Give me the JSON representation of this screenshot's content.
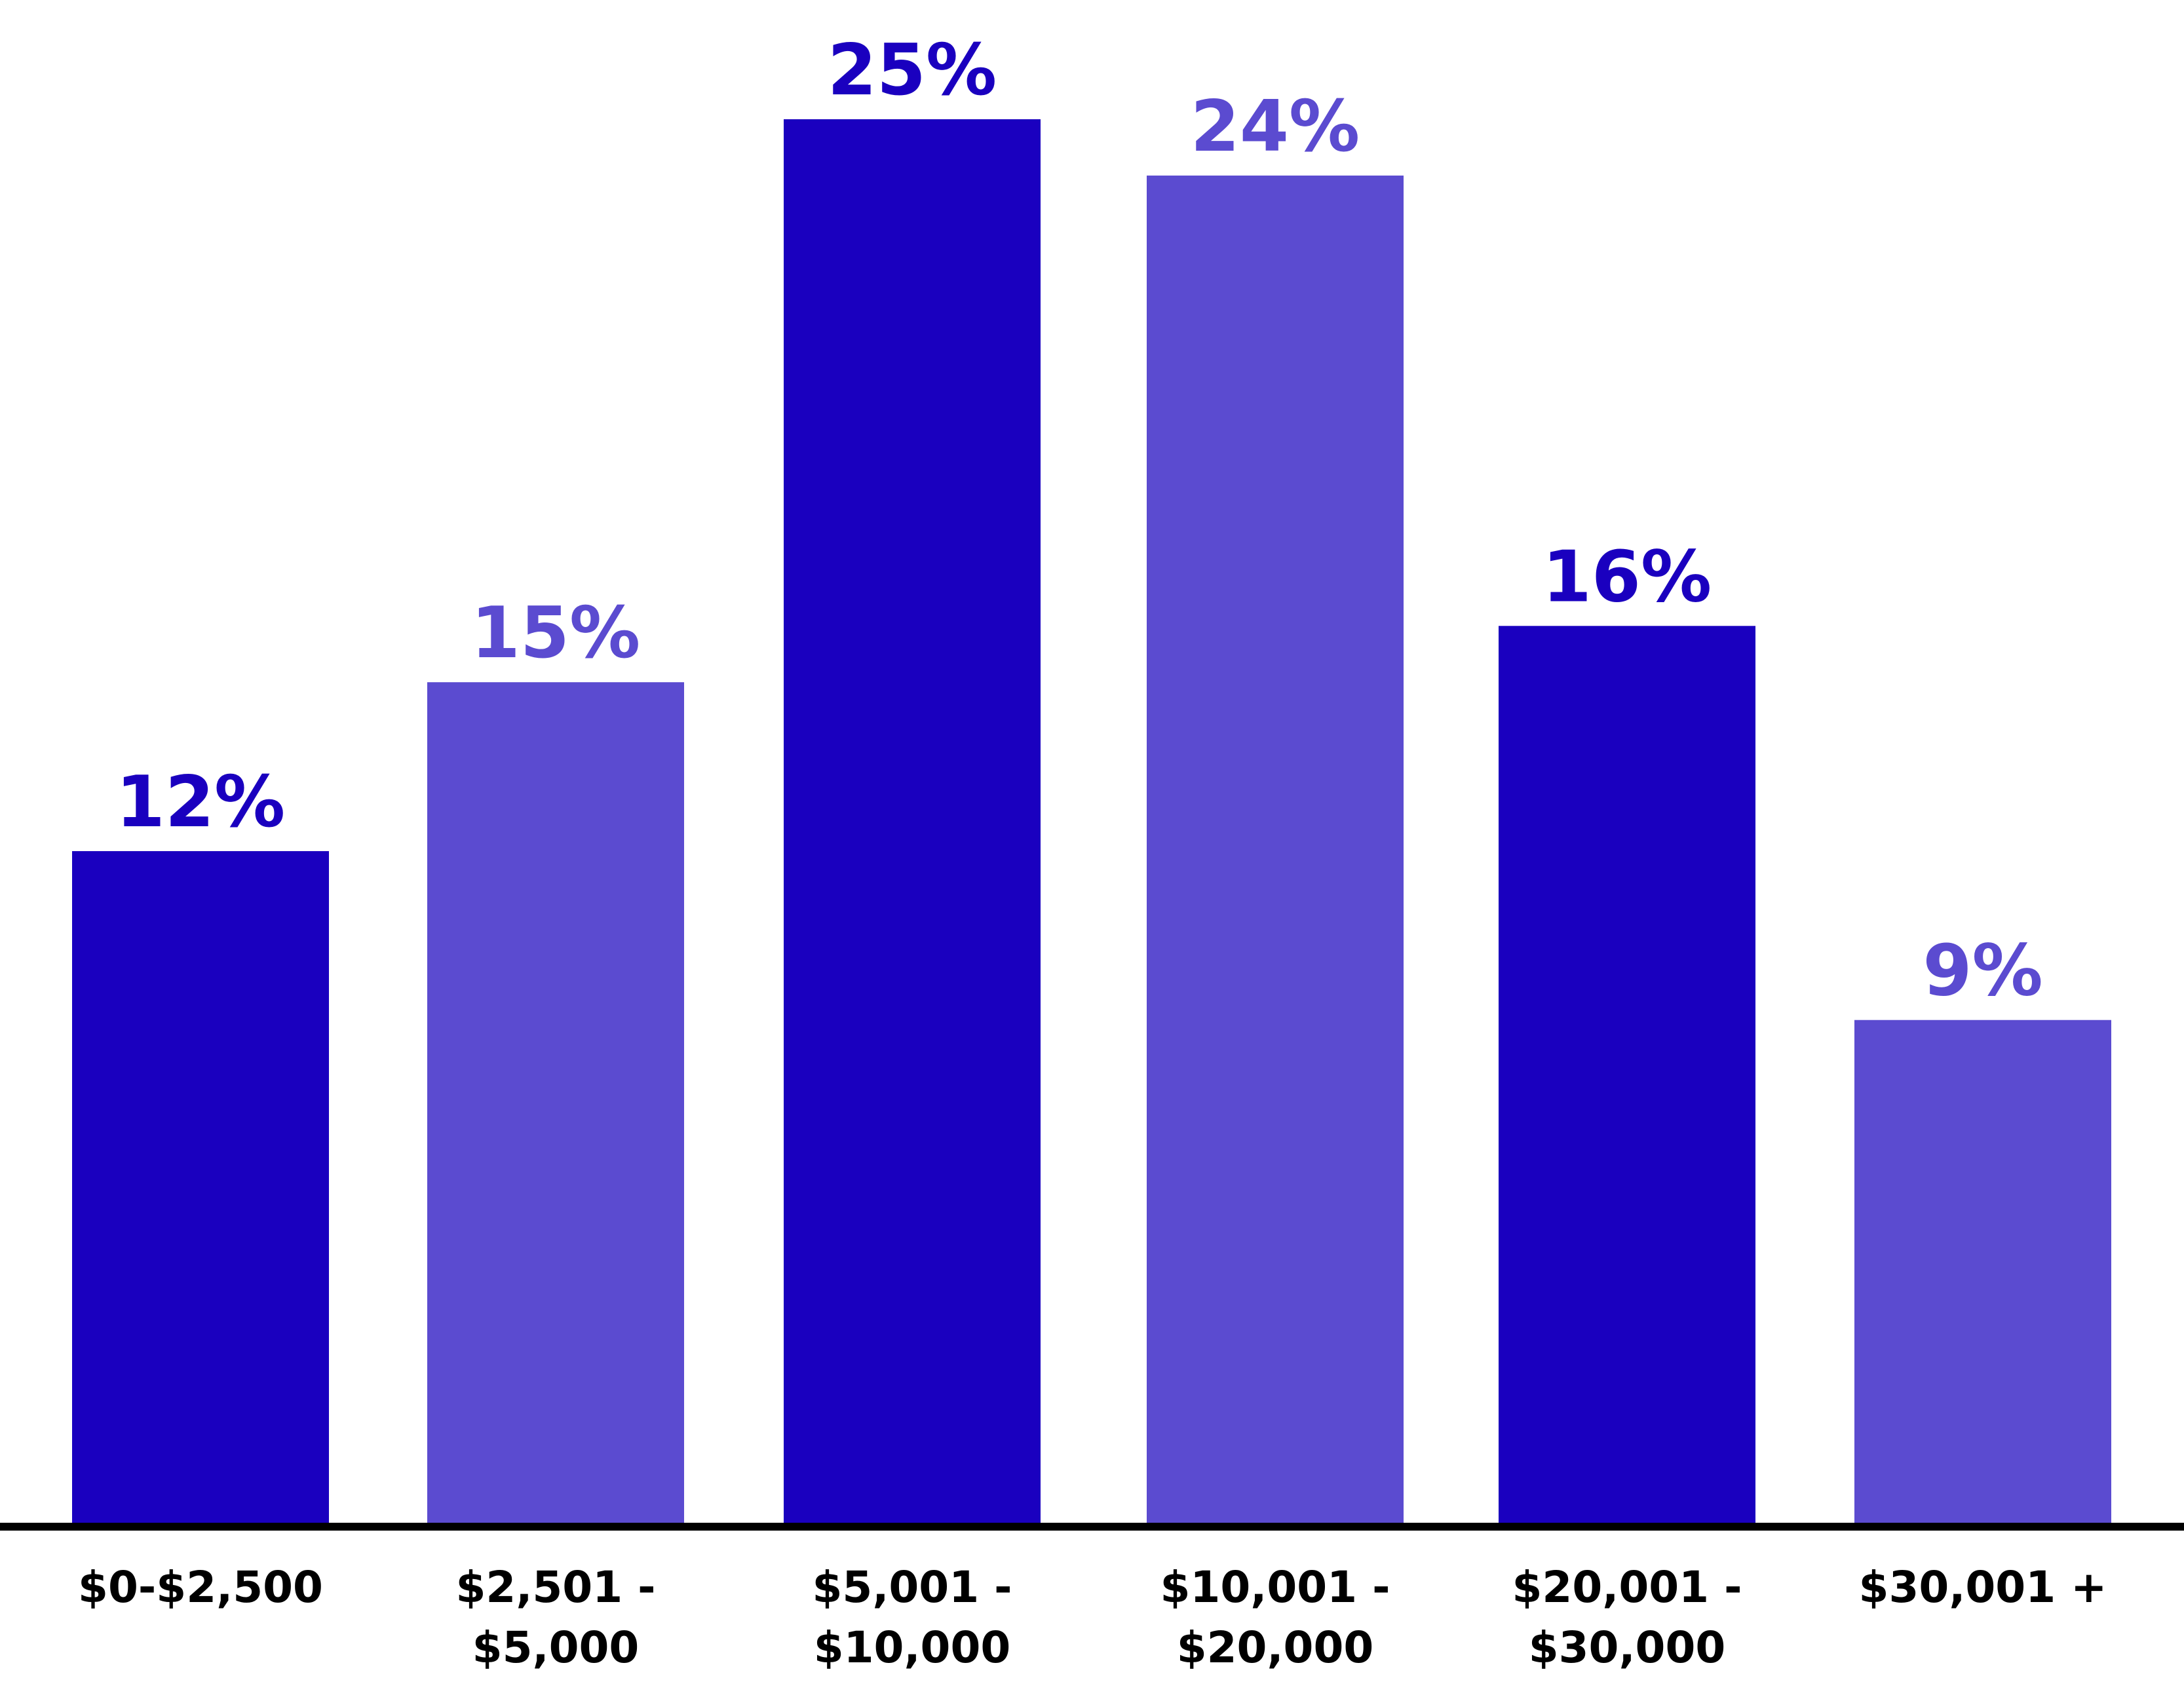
{
  "chart_data": {
    "type": "bar",
    "categories": [
      [
        "$0-$2,500"
      ],
      [
        "$2,501 -",
        "$5,000"
      ],
      [
        "$5,001 -",
        "$10,000"
      ],
      [
        "$10,001 -",
        "$20,000"
      ],
      [
        "$20,001 -",
        "$30,000"
      ],
      [
        "$30,001 +"
      ]
    ],
    "values": [
      12,
      15,
      25,
      24,
      16,
      9
    ],
    "labels": [
      "12%",
      "15%",
      "25%",
      "24%",
      "16%",
      "9%"
    ],
    "unit": "%",
    "title": "",
    "xlabel": "",
    "ylabel": "",
    "ylim": [
      0,
      25
    ],
    "grid": false,
    "legend": "none",
    "colors": [
      "#1a00bf",
      "#5b4bd0",
      "#1a00bf",
      "#5b4bd0",
      "#1a00bf",
      "#5b4bd0"
    ],
    "axis_color": "#000000"
  }
}
